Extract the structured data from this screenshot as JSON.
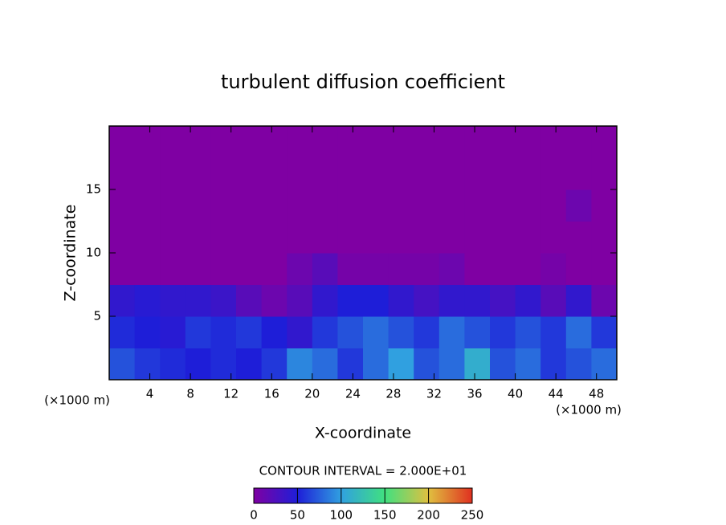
{
  "chart_data": {
    "type": "heatmap",
    "title": "turbulent diffusion coefficient",
    "xlabel": "X-coordinate",
    "ylabel": "Z-coordinate",
    "x_unit": "(×1000 m)",
    "x_unit_right": "(×1000 m)",
    "contour_note": "CONTOUR INTERVAL = 2.000E+01",
    "xlim": [
      0,
      50
    ],
    "ylim": [
      0,
      20
    ],
    "xticks": [
      4,
      8,
      12,
      16,
      20,
      24,
      28,
      32,
      36,
      40,
      44,
      48
    ],
    "yticks": [
      5,
      10,
      15
    ],
    "x": [
      1.25,
      3.75,
      6.25,
      8.75,
      11.25,
      13.75,
      16.25,
      18.75,
      21.25,
      23.75,
      26.25,
      28.75,
      31.25,
      33.75,
      36.25,
      38.75,
      41.25,
      43.75,
      46.25,
      48.75
    ],
    "y": [
      1.25,
      3.75,
      6.25,
      8.75,
      11.25,
      13.75,
      16.25,
      18.75
    ],
    "values": [
      [
        70,
        60,
        55,
        50,
        55,
        50,
        60,
        90,
        80,
        60,
        80,
        100,
        70,
        80,
        110,
        70,
        80,
        60,
        70,
        80
      ],
      [
        55,
        50,
        45,
        60,
        55,
        60,
        50,
        40,
        60,
        70,
        80,
        70,
        60,
        80,
        70,
        60,
        70,
        60,
        80,
        60
      ],
      [
        40,
        45,
        40,
        40,
        35,
        20,
        10,
        20,
        40,
        50,
        50,
        40,
        30,
        40,
        40,
        30,
        40,
        20,
        40,
        10
      ],
      [
        0,
        0,
        0,
        0,
        0,
        0,
        0,
        10,
        20,
        5,
        5,
        5,
        5,
        10,
        0,
        0,
        0,
        5,
        0,
        0
      ],
      [
        0,
        0,
        0,
        0,
        0,
        0,
        0,
        0,
        0,
        0,
        0,
        0,
        0,
        0,
        0,
        0,
        0,
        0,
        0,
        0
      ],
      [
        0,
        0,
        0,
        0,
        0,
        0,
        0,
        0,
        0,
        0,
        0,
        0,
        0,
        0,
        0,
        0,
        0,
        0,
        10,
        0
      ],
      [
        0,
        0,
        0,
        0,
        0,
        0,
        0,
        0,
        0,
        0,
        0,
        0,
        0,
        0,
        0,
        0,
        0,
        0,
        0,
        0
      ],
      [
        0,
        0,
        0,
        0,
        0,
        0,
        0,
        0,
        0,
        0,
        0,
        0,
        0,
        0,
        0,
        0,
        0,
        0,
        0,
        0
      ]
    ],
    "clim": [
      0,
      250
    ],
    "cticks": [
      0,
      50,
      100,
      150,
      200,
      250
    ],
    "colormap": [
      "#7f00a3",
      "#1e1ed8",
      "#30a0e0",
      "#40e080",
      "#e0c040",
      "#e03020"
    ]
  }
}
